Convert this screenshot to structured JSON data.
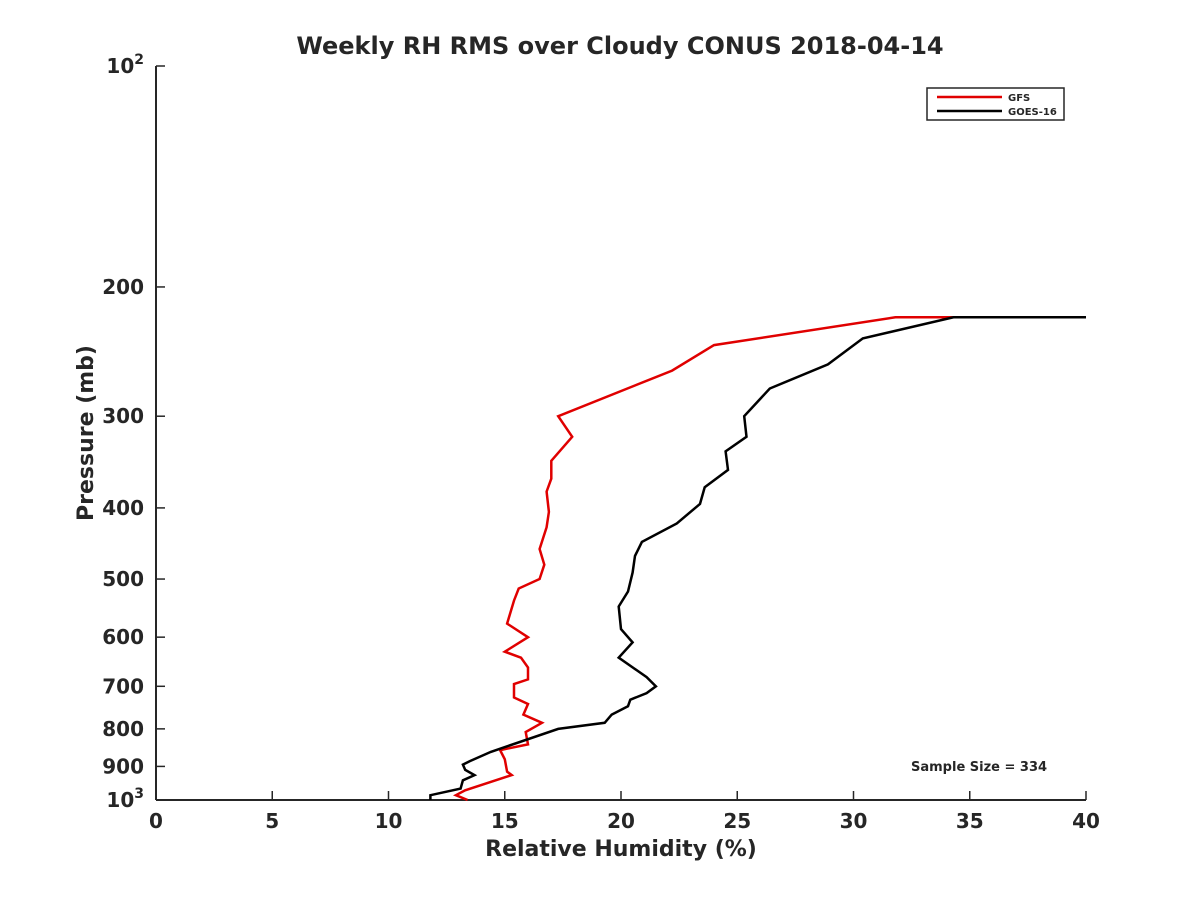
{
  "chart_data": {
    "type": "line",
    "title": "Weekly RH RMS over Cloudy CONUS 2018-04-14",
    "xlabel": "Relative Humidity (%)",
    "ylabel": "Pressure (mb)",
    "xlim": [
      0,
      40
    ],
    "ylim": [
      1000,
      100
    ],
    "yscale": "log",
    "grid": false,
    "legend_position": "top-right",
    "x_ticks": [
      0,
      5,
      10,
      15,
      20,
      25,
      30,
      35,
      40
    ],
    "x_tick_labels": [
      "0",
      "5",
      "10",
      "15",
      "20",
      "25",
      "30",
      "35",
      "40"
    ],
    "y_ticks": [
      {
        "value": 100,
        "base": "10",
        "exp": "2"
      },
      {
        "value": 200,
        "label": "200"
      },
      {
        "value": 300,
        "label": "300"
      },
      {
        "value": 400,
        "label": "400"
      },
      {
        "value": 500,
        "label": "500"
      },
      {
        "value": 600,
        "label": "600"
      },
      {
        "value": 700,
        "label": "700"
      },
      {
        "value": 800,
        "label": "800"
      },
      {
        "value": 900,
        "label": "900"
      },
      {
        "value": 1000,
        "base": "10",
        "exp": "3"
      }
    ],
    "series": [
      {
        "name": "GFS",
        "color": "#e00000",
        "points": [
          [
            13.4,
            1000
          ],
          [
            12.9,
            985
          ],
          [
            13.3,
            970
          ],
          [
            15.3,
            925
          ],
          [
            15.1,
            915
          ],
          [
            15.0,
            880
          ],
          [
            14.8,
            855
          ],
          [
            16.0,
            840
          ],
          [
            15.9,
            808
          ],
          [
            16.6,
            785
          ],
          [
            15.8,
            765
          ],
          [
            16.0,
            740
          ],
          [
            15.4,
            725
          ],
          [
            15.4,
            695
          ],
          [
            16.0,
            685
          ],
          [
            16.0,
            660
          ],
          [
            15.7,
            640
          ],
          [
            15.0,
            628
          ],
          [
            16.0,
            600
          ],
          [
            15.1,
            575
          ],
          [
            15.4,
            535
          ],
          [
            15.6,
            515
          ],
          [
            16.5,
            500
          ],
          [
            16.7,
            478
          ],
          [
            16.5,
            455
          ],
          [
            16.8,
            425
          ],
          [
            16.9,
            405
          ],
          [
            16.8,
            380
          ],
          [
            17.0,
            365
          ],
          [
            17.0,
            345
          ],
          [
            17.9,
            320
          ],
          [
            17.3,
            300
          ],
          [
            22.2,
            260
          ],
          [
            24.0,
            240
          ],
          [
            31.8,
            220
          ],
          [
            34.3,
            220
          ]
        ]
      },
      {
        "name": "GOES-16",
        "color": "#000000",
        "points": [
          [
            11.8,
            1000
          ],
          [
            11.8,
            985
          ],
          [
            13.1,
            965
          ],
          [
            13.2,
            940
          ],
          [
            13.7,
            925
          ],
          [
            13.3,
            910
          ],
          [
            13.2,
            895
          ],
          [
            13.5,
            885
          ],
          [
            14.4,
            860
          ],
          [
            15.1,
            845
          ],
          [
            17.3,
            800
          ],
          [
            19.3,
            785
          ],
          [
            19.6,
            765
          ],
          [
            20.3,
            745
          ],
          [
            20.4,
            730
          ],
          [
            21.1,
            715
          ],
          [
            21.5,
            700
          ],
          [
            21.1,
            680
          ],
          [
            19.9,
            640
          ],
          [
            20.5,
            610
          ],
          [
            20.0,
            585
          ],
          [
            19.9,
            545
          ],
          [
            20.3,
            520
          ],
          [
            20.5,
            490
          ],
          [
            20.6,
            465
          ],
          [
            20.9,
            445
          ],
          [
            22.4,
            420
          ],
          [
            23.4,
            395
          ],
          [
            23.6,
            375
          ],
          [
            24.6,
            355
          ],
          [
            24.5,
            335
          ],
          [
            25.4,
            320
          ],
          [
            25.3,
            300
          ],
          [
            26.4,
            275
          ],
          [
            28.9,
            255
          ],
          [
            30.4,
            235
          ],
          [
            34.3,
            220
          ],
          [
            40.0,
            220
          ]
        ]
      }
    ],
    "annotations": [
      {
        "text": "Sample Size = 334"
      }
    ]
  }
}
